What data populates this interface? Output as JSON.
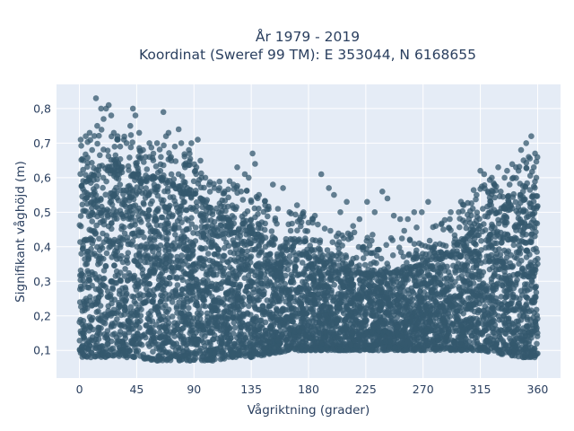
{
  "chart_data": {
    "type": "scatter",
    "title_line1": "År 1979 - 2019",
    "title_line2": "Koordinat (Sweref 99 TM): E 353044, N 6168655",
    "xlabel": "Vågriktning (grader)",
    "ylabel": "Signifikant våghöjd (m)",
    "xlim": [
      -18,
      378
    ],
    "ylim": [
      0.02,
      0.87
    ],
    "xticks": [
      0,
      45,
      90,
      135,
      180,
      225,
      270,
      315,
      360
    ],
    "xtick_labels": [
      "0",
      "45",
      "90",
      "135",
      "180",
      "225",
      "270",
      "315",
      "360"
    ],
    "yticks": [
      0.1,
      0.2,
      0.3,
      0.4,
      0.5,
      0.6,
      0.7,
      0.8
    ],
    "ytick_labels": [
      "0,1",
      "0,2",
      "0,3",
      "0,4",
      "0,5",
      "0,6",
      "0,7",
      "0,8"
    ],
    "grid": true,
    "plot_bg": "#e5ecf6",
    "marker_color": "#34586e",
    "dense_envelope": {
      "x": [
        0,
        15,
        30,
        45,
        60,
        75,
        90,
        105,
        120,
        135,
        150,
        165,
        180,
        195,
        210,
        225,
        240,
        255,
        270,
        285,
        300,
        315,
        330,
        345,
        360
      ],
      "y_low": [
        0.08,
        0.08,
        0.08,
        0.08,
        0.07,
        0.07,
        0.07,
        0.07,
        0.08,
        0.08,
        0.09,
        0.1,
        0.1,
        0.1,
        0.1,
        0.1,
        0.1,
        0.1,
        0.1,
        0.1,
        0.1,
        0.1,
        0.09,
        0.08,
        0.08
      ],
      "y_high": [
        0.57,
        0.62,
        0.62,
        0.6,
        0.6,
        0.57,
        0.55,
        0.5,
        0.47,
        0.44,
        0.41,
        0.39,
        0.37,
        0.35,
        0.33,
        0.32,
        0.32,
        0.33,
        0.35,
        0.37,
        0.42,
        0.46,
        0.5,
        0.53,
        0.55
      ]
    },
    "points": [
      [
        1,
        0.71
      ],
      [
        3,
        0.65
      ],
      [
        5,
        0.72
      ],
      [
        8,
        0.73
      ],
      [
        10,
        0.68
      ],
      [
        13,
        0.83
      ],
      [
        14,
        0.75
      ],
      [
        17,
        0.8
      ],
      [
        19,
        0.77
      ],
      [
        21,
        0.8
      ],
      [
        23,
        0.81
      ],
      [
        25,
        0.78
      ],
      [
        27,
        0.73
      ],
      [
        30,
        0.72
      ],
      [
        32,
        0.69
      ],
      [
        35,
        0.71
      ],
      [
        37,
        0.7
      ],
      [
        40,
        0.75
      ],
      [
        42,
        0.8
      ],
      [
        44,
        0.78
      ],
      [
        47,
        0.73
      ],
      [
        50,
        0.68
      ],
      [
        52,
        0.66
      ],
      [
        55,
        0.7
      ],
      [
        58,
        0.65
      ],
      [
        61,
        0.7
      ],
      [
        64,
        0.66
      ],
      [
        66,
        0.79
      ],
      [
        68,
        0.72
      ],
      [
        70,
        0.73
      ],
      [
        72,
        0.66
      ],
      [
        75,
        0.69
      ],
      [
        78,
        0.74
      ],
      [
        80,
        0.7
      ],
      [
        83,
        0.63
      ],
      [
        86,
        0.68
      ],
      [
        88,
        0.7
      ],
      [
        91,
        0.62
      ],
      [
        93,
        0.71
      ],
      [
        96,
        0.6
      ],
      [
        99,
        0.6
      ],
      [
        102,
        0.58
      ],
      [
        106,
        0.57
      ],
      [
        110,
        0.57
      ],
      [
        114,
        0.56
      ],
      [
        118,
        0.59
      ],
      [
        121,
        0.58
      ],
      [
        124,
        0.63
      ],
      [
        127,
        0.56
      ],
      [
        130,
        0.61
      ],
      [
        133,
        0.6
      ],
      [
        136,
        0.67
      ],
      [
        138,
        0.64
      ],
      [
        141,
        0.55
      ],
      [
        146,
        0.52
      ],
      [
        152,
        0.58
      ],
      [
        156,
        0.51
      ],
      [
        160,
        0.57
      ],
      [
        165,
        0.5
      ],
      [
        171,
        0.52
      ],
      [
        176,
        0.5
      ],
      [
        180,
        0.47
      ],
      [
        185,
        0.49
      ],
      [
        190,
        0.61
      ],
      [
        196,
        0.57
      ],
      [
        200,
        0.55
      ],
      [
        205,
        0.5
      ],
      [
        210,
        0.53
      ],
      [
        215,
        0.46
      ],
      [
        220,
        0.48
      ],
      [
        226,
        0.53
      ],
      [
        232,
        0.5
      ],
      [
        238,
        0.56
      ],
      [
        242,
        0.54
      ],
      [
        247,
        0.49
      ],
      [
        252,
        0.48
      ],
      [
        258,
        0.48
      ],
      [
        263,
        0.5
      ],
      [
        269,
        0.5
      ],
      [
        274,
        0.53
      ],
      [
        280,
        0.46
      ],
      [
        286,
        0.45
      ],
      [
        291,
        0.48
      ],
      [
        298,
        0.5
      ],
      [
        302,
        0.52
      ],
      [
        306,
        0.48
      ],
      [
        312,
        0.55
      ],
      [
        315,
        0.62
      ],
      [
        318,
        0.61
      ],
      [
        321,
        0.56
      ],
      [
        324,
        0.6
      ],
      [
        326,
        0.58
      ],
      [
        329,
        0.63
      ],
      [
        331,
        0.56
      ],
      [
        334,
        0.6
      ],
      [
        336,
        0.62
      ],
      [
        338,
        0.58
      ],
      [
        341,
        0.6
      ],
      [
        343,
        0.63
      ],
      [
        345,
        0.62
      ],
      [
        347,
        0.68
      ],
      [
        349,
        0.65
      ],
      [
        351,
        0.7
      ],
      [
        353,
        0.66
      ],
      [
        355,
        0.72
      ],
      [
        357,
        0.63
      ],
      [
        358,
        0.67
      ],
      [
        359,
        0.6
      ]
    ]
  }
}
